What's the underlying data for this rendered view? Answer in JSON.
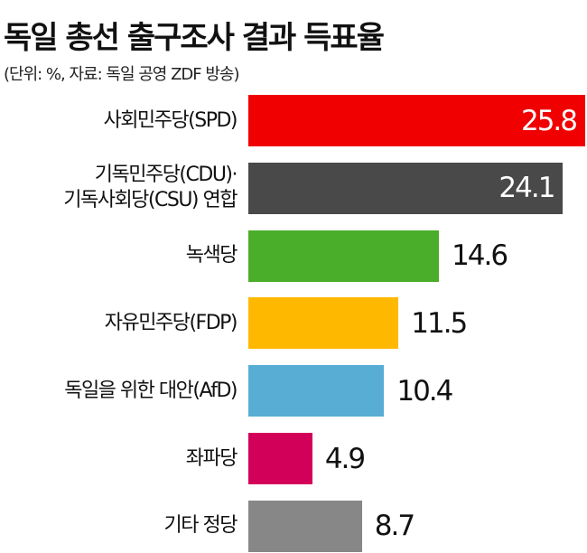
{
  "chart_data": {
    "type": "hbar",
    "title": "독일 총선 출구조사 결과 득표율",
    "subtitle": "(단위: %, 자료: 독일 공영 ZDF 방송)",
    "categories": [
      "사회민주당(SPD)",
      "기독민주당(CDU)·\n기독사회당(CSU) 연합",
      "녹색당",
      "자유민주당(FDP)",
      "독일을 위한 대안(AfD)",
      "좌파당",
      "기타 정당"
    ],
    "values": [
      25.8,
      24.1,
      14.6,
      11.5,
      10.4,
      4.9,
      8.7
    ],
    "colors": [
      "#f00000",
      "#494949",
      "#4bae2b",
      "#ffb800",
      "#58add5",
      "#d3005a",
      "#878787"
    ]
  }
}
